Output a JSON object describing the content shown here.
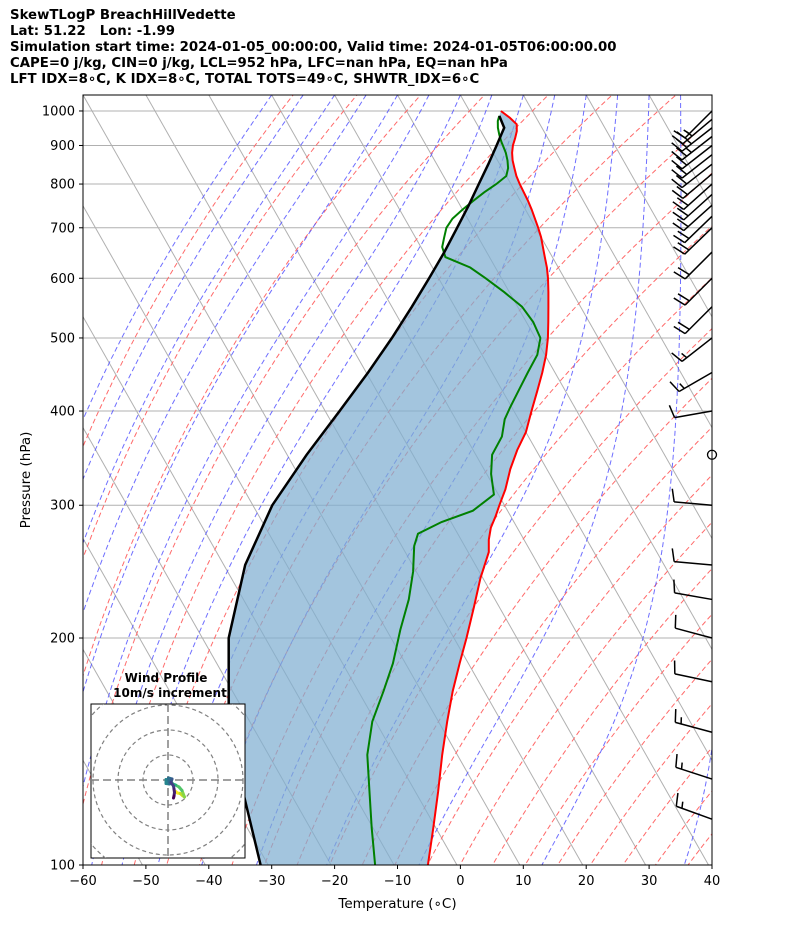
{
  "header": {
    "line1": "SkewTLogP BreachHillVedette",
    "line2": "Lat: 51.22   Lon: -1.99",
    "line3": "Simulation start time: 2024-01-05_00:00:00, Valid time: 2024-01-05T06:00:00.00",
    "line4": "CAPE=0 j/kg, CIN=0 j/kg, LCL=952 hPa, LFC=nan hPa, EQ=nan hPa",
    "line5": "LFT IDX=8∘C, K IDX=8∘C, TOTAL TOTS=49∘C, SHWTR_IDX=6∘C"
  },
  "chart_data": [
    {
      "type": "line",
      "chart": "skew-t log-p",
      "xlabel": "Temperature (∘C)",
      "ylabel": "Pressure (hPa)",
      "xlim": [
        -60,
        40
      ],
      "ylim": [
        1050,
        100
      ],
      "y_scale": "log",
      "skew_per_decade_degC": 68,
      "xticks": [
        "−60",
        "−50",
        "−40",
        "−30",
        "−20",
        "−10",
        "0",
        "10",
        "20",
        "30",
        "40"
      ],
      "yticks": [
        "100",
        "200",
        "300",
        "400",
        "500",
        "600",
        "700",
        "800",
        "900",
        "1000"
      ],
      "series": [
        {
          "color": "#ff0000",
          "points": [
            [
              1000,
              5
            ],
            [
              980,
              5.8
            ],
            [
              960,
              6.3
            ],
            [
              940,
              5.7
            ],
            [
              920,
              4.8
            ],
            [
              900,
              3.8
            ],
            [
              880,
              3.0
            ],
            [
              860,
              2.4
            ],
            [
              840,
              2.0
            ],
            [
              820,
              1.6
            ],
            [
              800,
              1.4
            ],
            [
              780,
              1.3
            ],
            [
              760,
              1.2
            ],
            [
              740,
              1.0
            ],
            [
              720,
              0.7
            ],
            [
              700,
              0.4
            ],
            [
              680,
              0.0
            ],
            [
              660,
              -0.6
            ],
            [
              640,
              -1.2
            ],
            [
              620,
              -1.8
            ],
            [
              600,
              -2.6
            ],
            [
              575,
              -3.8
            ],
            [
              550,
              -5.1
            ],
            [
              525,
              -6.5
            ],
            [
              500,
              -8.0
            ],
            [
              475,
              -9.8
            ],
            [
              450,
              -12.0
            ],
            [
              425,
              -14.5
            ],
            [
              400,
              -17.2
            ],
            [
              375,
              -20.0
            ],
            [
              355,
              -23.0
            ],
            [
              335,
              -25.8
            ],
            [
              315,
              -28.4
            ],
            [
              300,
              -30.8
            ],
            [
              290,
              -32.4
            ],
            [
              280,
              -34.2
            ],
            [
              270,
              -35.6
            ],
            [
              260,
              -36.7
            ],
            [
              240,
              -40.4
            ],
            [
              220,
              -44.0
            ],
            [
              200,
              -48.0
            ],
            [
              185,
              -51.4
            ],
            [
              170,
              -55.0
            ],
            [
              155,
              -58.6
            ],
            [
              140,
              -62.4
            ],
            [
              125,
              -66.4
            ],
            [
              112,
              -70.4
            ],
            [
              100,
              -74.6
            ]
          ]
        },
        {
          "color": "#008000",
          "points": [
            [
              985,
              4.3
            ],
            [
              970,
              3.6
            ],
            [
              950,
              3.0
            ],
            [
              930,
              2.6
            ],
            [
              910,
              2.3
            ],
            [
              900,
              2.2
            ],
            [
              880,
              2.0
            ],
            [
              860,
              1.6
            ],
            [
              840,
              1.0
            ],
            [
              820,
              0.0
            ],
            [
              800,
              -2.3
            ],
            [
              780,
              -5.0
            ],
            [
              760,
              -7.5
            ],
            [
              740,
              -10.0
            ],
            [
              720,
              -12.4
            ],
            [
              700,
              -14.2
            ],
            [
              680,
              -15.4
            ],
            [
              660,
              -16.6
            ],
            [
              640,
              -17.0
            ],
            [
              620,
              -14.0
            ],
            [
              600,
              -12.5
            ],
            [
              575,
              -10.8
            ],
            [
              550,
              -9.3
            ],
            [
              525,
              -8.9
            ],
            [
              500,
              -9.2
            ],
            [
              475,
              -11.2
            ],
            [
              450,
              -14.3
            ],
            [
              425,
              -17.5
            ],
            [
              405,
              -20.2
            ],
            [
              390,
              -22.2
            ],
            [
              370,
              -24.2
            ],
            [
              350,
              -27.4
            ],
            [
              330,
              -29.3
            ],
            [
              310,
              -30.7
            ],
            [
              295,
              -35.5
            ],
            [
              285,
              -41.5
            ],
            [
              275,
              -46.3
            ],
            [
              265,
              -48.0
            ],
            [
              245,
              -50.5
            ],
            [
              225,
              -53.7
            ],
            [
              205,
              -57.8
            ],
            [
              185,
              -62.0
            ],
            [
              170,
              -66.0
            ],
            [
              155,
              -70.5
            ],
            [
              140,
              -74.3
            ],
            [
              125,
              -77.3
            ],
            [
              112,
              -80.2
            ],
            [
              100,
              -83.0
            ]
          ]
        },
        {
          "color": "#000000",
          "points": [
            [
              985,
              4.3
            ],
            [
              950,
              4.0
            ],
            [
              900,
              1.2
            ],
            [
              850,
              -1.8
            ],
            [
              800,
              -5.1
            ],
            [
              750,
              -8.6
            ],
            [
              700,
              -12.5
            ],
            [
              650,
              -16.7
            ],
            [
              600,
              -21.5
            ],
            [
              550,
              -26.8
            ],
            [
              500,
              -32.8
            ],
            [
              450,
              -39.7
            ],
            [
              400,
              -47.7
            ],
            [
              350,
              -56.9
            ],
            [
              300,
              -66.9
            ],
            [
              250,
              -76.6
            ],
            [
              200,
              -85.8
            ],
            [
              150,
              -94.3
            ],
            [
              100,
              -101.2
            ]
          ]
        }
      ],
      "wind_barbs": [
        {
          "p": 1000,
          "speed_kt": 15,
          "dir_deg": 225
        },
        {
          "p": 975,
          "speed_kt": 25,
          "dir_deg": 230
        },
        {
          "p": 950,
          "speed_kt": 25,
          "dir_deg": 232
        },
        {
          "p": 925,
          "speed_kt": 25,
          "dir_deg": 232
        },
        {
          "p": 900,
          "speed_kt": 20,
          "dir_deg": 232
        },
        {
          "p": 875,
          "speed_kt": 20,
          "dir_deg": 232
        },
        {
          "p": 850,
          "speed_kt": 20,
          "dir_deg": 232
        },
        {
          "p": 825,
          "speed_kt": 20,
          "dir_deg": 230
        },
        {
          "p": 800,
          "speed_kt": 20,
          "dir_deg": 228
        },
        {
          "p": 775,
          "speed_kt": 20,
          "dir_deg": 228
        },
        {
          "p": 750,
          "speed_kt": 20,
          "dir_deg": 228
        },
        {
          "p": 725,
          "speed_kt": 20,
          "dir_deg": 226
        },
        {
          "p": 700,
          "speed_kt": 20,
          "dir_deg": 226
        },
        {
          "p": 650,
          "speed_kt": 20,
          "dir_deg": 225
        },
        {
          "p": 600,
          "speed_kt": 20,
          "dir_deg": 225
        },
        {
          "p": 550,
          "speed_kt": 20,
          "dir_deg": 225
        },
        {
          "p": 500,
          "speed_kt": 15,
          "dir_deg": 232
        },
        {
          "p": 450,
          "speed_kt": 15,
          "dir_deg": 240
        },
        {
          "p": 400,
          "speed_kt": 10,
          "dir_deg": 260
        },
        {
          "p": 350,
          "speed_kt": 0,
          "dir_deg": 0
        },
        {
          "p": 300,
          "speed_kt": 10,
          "dir_deg": 275
        },
        {
          "p": 250,
          "speed_kt": 10,
          "dir_deg": 275
        },
        {
          "p": 225,
          "speed_kt": 10,
          "dir_deg": 280
        },
        {
          "p": 200,
          "speed_kt": 10,
          "dir_deg": 285
        },
        {
          "p": 175,
          "speed_kt": 10,
          "dir_deg": 282
        },
        {
          "p": 150,
          "speed_kt": 15,
          "dir_deg": 285
        },
        {
          "p": 130,
          "speed_kt": 15,
          "dir_deg": 288
        },
        {
          "p": 115,
          "speed_kt": 15,
          "dir_deg": 290
        }
      ]
    },
    {
      "type": "scatter",
      "chart": "hodograph",
      "title": "Wind Profile",
      "subtitle": "10m/s increment",
      "ring_increment_ms": 10,
      "ring_count": 3,
      "points": [
        [
          3.0,
          -4.5
        ],
        [
          3.8,
          -5.2
        ],
        [
          4.8,
          -5.4
        ],
        [
          5.8,
          -6.2
        ],
        [
          6.6,
          -6.8
        ],
        [
          5.6,
          -4.2
        ],
        [
          4.4,
          -2.8
        ],
        [
          3.0,
          -2.0
        ],
        [
          2.0,
          -1.6
        ],
        [
          0.8,
          -0.4
        ],
        [
          -0.8,
          0.2
        ],
        [
          -0.8,
          -1.4
        ],
        [
          0.6,
          -1.6
        ],
        [
          0.2,
          0.8
        ],
        [
          1.6,
          0.4
        ],
        [
          1.2,
          -1.0
        ],
        [
          2.2,
          -2.4
        ],
        [
          2.4,
          -3.6
        ],
        [
          2.6,
          -5.0
        ],
        [
          2.4,
          -6.4
        ],
        [
          2.2,
          -7.2
        ]
      ],
      "colors": [
        "#fde725",
        "#c2df23",
        "#86d549",
        "#52c569",
        "#2ab07f",
        "#1e9b8a",
        "#25858e",
        "#2d708e",
        "#38588c",
        "#433e85",
        "#482173",
        "#440154"
      ]
    }
  ]
}
